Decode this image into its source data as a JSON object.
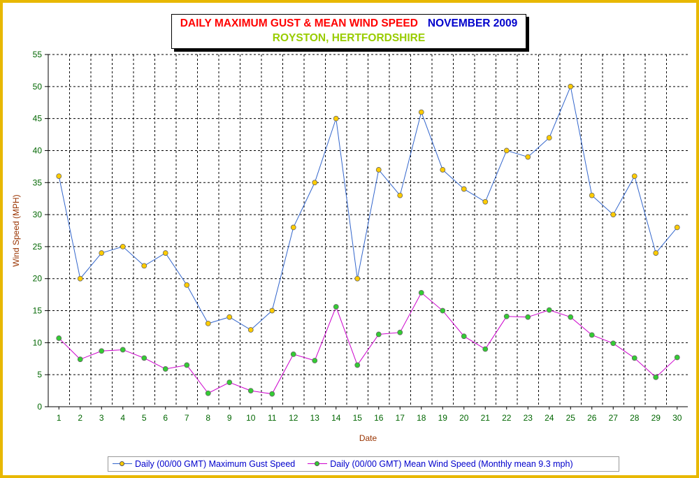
{
  "title": {
    "main": "DAILY MAXIMUM GUST & MEAN WIND SPEED",
    "month": "NOVEMBER 2009",
    "location": "ROYSTON, HERTFORDSHIRE"
  },
  "colors": {
    "frame": "#e8b800",
    "gust_line": "#3366cc",
    "gust_marker": "#ffcc00",
    "mean_line": "#cc00cc",
    "mean_marker": "#33cc33",
    "tick_text": "#006600",
    "axis_title": "#993300",
    "legend_text": "#0000cc"
  },
  "chart_data": {
    "type": "line",
    "title": "DAILY MAXIMUM GUST & MEAN WIND SPEED NOVEMBER 2009",
    "subtitle": "ROYSTON, HERTFORDSHIRE",
    "xlabel": "Date",
    "ylabel": "Wind Speed (MPH)",
    "ylim": [
      0,
      55
    ],
    "yticks": [
      0,
      5,
      10,
      15,
      20,
      25,
      30,
      35,
      40,
      45,
      50,
      55
    ],
    "grid": true,
    "grid_style": "dashed",
    "legend_position": "bottom",
    "categories": [
      "1",
      "2",
      "3",
      "4",
      "5",
      "6",
      "7",
      "8",
      "9",
      "10",
      "11",
      "12",
      "13",
      "14",
      "15",
      "16",
      "17",
      "18",
      "19",
      "20",
      "21",
      "22",
      "23",
      "24",
      "25",
      "26",
      "27",
      "28",
      "29",
      "30"
    ],
    "series": [
      {
        "name": "Daily (00/00 GMT) Maximum Gust Speed",
        "values": [
          36,
          20,
          24,
          25,
          22,
          24,
          19,
          13,
          14,
          12,
          15,
          28,
          35,
          45,
          20,
          37,
          33,
          46,
          37,
          34,
          32,
          40,
          39,
          42,
          50,
          33,
          30,
          36,
          24,
          28
        ]
      },
      {
        "name": "Daily (00/00 GMT) Mean Wind Speed (Monthly mean 9.3 mph)",
        "values": [
          10.7,
          7.4,
          8.7,
          8.9,
          7.6,
          5.9,
          6.5,
          2.1,
          3.8,
          2.5,
          2.0,
          8.2,
          7.2,
          15.6,
          6.5,
          11.3,
          11.6,
          17.8,
          15.0,
          11.0,
          9.0,
          14.1,
          14.0,
          15.1,
          14.0,
          11.2,
          9.9,
          7.6,
          4.6,
          7.7
        ]
      }
    ]
  }
}
